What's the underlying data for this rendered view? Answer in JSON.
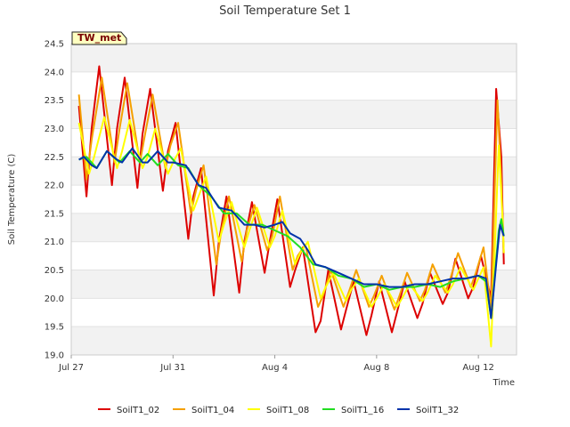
{
  "chart_data": {
    "type": "line",
    "title": "Soil Temperature Set 1",
    "xlabel": "Time",
    "ylabel": "Soil Temperature (C)",
    "badge": "TW_met",
    "ylim": [
      19.0,
      24.5
    ],
    "xlim_days": [
      27.0,
      44.5
    ],
    "y_ticks": [
      "19.0",
      "19.5",
      "20.0",
      "20.5",
      "21.0",
      "21.5",
      "22.0",
      "22.5",
      "23.0",
      "23.5",
      "24.0",
      "24.5"
    ],
    "x_ticks": [
      {
        "label": "Jul 27",
        "day": 27
      },
      {
        "label": "Jul 31",
        "day": 31
      },
      {
        "label": "Aug 4",
        "day": 35
      },
      {
        "label": "Aug 8",
        "day": 39
      },
      {
        "label": "Aug 12",
        "day": 43
      }
    ],
    "grid": "horizontal bands",
    "legend_position": "bottom",
    "series": [
      {
        "name": "SoilT1_02",
        "color": "#dd0000",
        "x": [
          27.3,
          27.6,
          27.8,
          28.1,
          28.6,
          28.8,
          29.1,
          29.6,
          29.8,
          30.1,
          30.6,
          30.8,
          31.1,
          31.6,
          31.8,
          32.1,
          32.6,
          32.8,
          33.1,
          33.6,
          33.8,
          34.1,
          34.6,
          34.8,
          35.1,
          35.6,
          35.8,
          36.1,
          36.6,
          36.8,
          37.1,
          37.6,
          37.8,
          38.1,
          38.6,
          38.8,
          39.1,
          39.6,
          39.8,
          40.1,
          40.6,
          40.8,
          41.1,
          41.6,
          41.8,
          42.1,
          42.6,
          42.8,
          43.1,
          43.5,
          43.7,
          43.9,
          44.0
        ],
        "y": [
          23.4,
          21.8,
          23.0,
          24.1,
          22.0,
          23.0,
          23.9,
          21.95,
          22.9,
          23.7,
          21.9,
          22.6,
          23.1,
          21.05,
          21.8,
          22.3,
          20.05,
          21.0,
          21.8,
          20.1,
          21.0,
          21.7,
          20.45,
          21.0,
          21.75,
          20.2,
          20.5,
          20.9,
          19.4,
          19.6,
          20.5,
          19.45,
          19.8,
          20.3,
          19.35,
          19.7,
          20.3,
          19.4,
          19.75,
          20.3,
          19.65,
          19.9,
          20.45,
          19.9,
          20.1,
          20.7,
          20.0,
          20.2,
          20.75,
          20.0,
          23.7,
          22.5,
          20.6
        ]
      },
      {
        "name": "SoilT1_04",
        "color": "#f5a000",
        "x": [
          27.3,
          27.6,
          27.8,
          28.2,
          28.7,
          28.9,
          29.2,
          29.7,
          29.9,
          30.2,
          30.7,
          30.9,
          31.2,
          31.7,
          31.9,
          32.2,
          32.7,
          32.9,
          33.2,
          33.7,
          33.9,
          34.2,
          34.7,
          34.9,
          35.2,
          35.7,
          35.9,
          36.2,
          36.7,
          36.9,
          37.2,
          37.7,
          37.9,
          38.2,
          38.7,
          38.9,
          39.2,
          39.7,
          39.9,
          40.2,
          40.7,
          40.9,
          41.2,
          41.7,
          41.9,
          42.2,
          42.7,
          42.9,
          43.2,
          43.5,
          43.75,
          43.9,
          44.0
        ],
        "y": [
          23.6,
          22.1,
          22.8,
          23.9,
          22.4,
          23.0,
          23.8,
          22.4,
          22.9,
          23.6,
          22.3,
          22.7,
          23.1,
          21.5,
          21.9,
          22.35,
          20.6,
          21.2,
          21.8,
          20.65,
          21.2,
          21.65,
          20.85,
          21.1,
          21.8,
          20.5,
          20.75,
          20.95,
          19.85,
          20.05,
          20.5,
          19.85,
          20.1,
          20.5,
          19.85,
          20.05,
          20.4,
          19.8,
          20.05,
          20.45,
          19.95,
          20.15,
          20.6,
          20.1,
          20.35,
          20.8,
          20.2,
          20.45,
          20.9,
          19.8,
          23.5,
          22.0,
          20.8
        ]
      },
      {
        "name": "SoilT1_08",
        "color": "#ffff00",
        "x": [
          27.3,
          27.7,
          27.9,
          28.3,
          28.8,
          29.0,
          29.3,
          29.8,
          30.0,
          30.3,
          30.8,
          31.0,
          31.3,
          31.8,
          32.0,
          32.3,
          32.8,
          33.0,
          33.3,
          33.8,
          34.0,
          34.3,
          34.8,
          35.0,
          35.3,
          35.8,
          36.0,
          36.3,
          36.8,
          37.0,
          37.3,
          37.8,
          38.0,
          38.3,
          38.8,
          39.0,
          39.3,
          39.8,
          40.0,
          40.3,
          40.8,
          41.0,
          41.3,
          41.8,
          42.0,
          42.3,
          42.8,
          43.0,
          43.2,
          43.5,
          43.8,
          43.95,
          44.0
        ],
        "y": [
          23.1,
          22.2,
          22.5,
          23.2,
          22.3,
          22.6,
          23.15,
          22.3,
          22.5,
          23.0,
          22.2,
          22.4,
          22.65,
          21.55,
          21.8,
          22.15,
          21.0,
          21.3,
          21.7,
          20.9,
          21.2,
          21.6,
          20.9,
          21.1,
          21.55,
          20.6,
          20.8,
          21.0,
          20.0,
          20.2,
          20.45,
          19.95,
          20.15,
          20.35,
          19.85,
          20.0,
          20.25,
          19.85,
          20.0,
          20.25,
          19.95,
          20.1,
          20.4,
          20.1,
          20.25,
          20.55,
          20.15,
          20.35,
          20.55,
          19.15,
          22.7,
          21.4,
          20.8
        ]
      },
      {
        "name": "SoilT1_16",
        "color": "#22dd22",
        "x": [
          27.3,
          27.6,
          28.0,
          28.4,
          28.9,
          29.3,
          29.7,
          30.0,
          30.4,
          30.8,
          31.2,
          31.6,
          32.0,
          32.5,
          33.0,
          33.5,
          34.0,
          34.5,
          35.0,
          35.5,
          36.0,
          36.5,
          37.0,
          37.5,
          38.0,
          38.5,
          39.0,
          39.5,
          40.0,
          40.5,
          41.0,
          41.5,
          42.0,
          42.5,
          43.0,
          43.3,
          43.5,
          43.8,
          43.9,
          44.0
        ],
        "y": [
          22.45,
          22.5,
          22.3,
          22.6,
          22.4,
          22.6,
          22.4,
          22.55,
          22.35,
          22.55,
          22.35,
          22.3,
          22.0,
          21.8,
          21.5,
          21.5,
          21.3,
          21.3,
          21.2,
          21.1,
          20.9,
          20.6,
          20.55,
          20.4,
          20.35,
          20.2,
          20.25,
          20.15,
          20.2,
          20.2,
          20.25,
          20.2,
          20.3,
          20.35,
          20.4,
          20.3,
          19.65,
          21.2,
          21.4,
          21.1
        ]
      },
      {
        "name": "SoilT1_32",
        "color": "#0033aa",
        "x": [
          27.3,
          27.5,
          27.8,
          28.0,
          28.4,
          28.8,
          29.0,
          29.4,
          29.8,
          30.0,
          30.4,
          30.8,
          31.0,
          31.5,
          32.0,
          32.3,
          32.8,
          33.3,
          33.8,
          34.2,
          34.6,
          35.0,
          35.3,
          35.6,
          36.0,
          36.3,
          36.6,
          37.0,
          37.5,
          38.0,
          38.5,
          39.0,
          39.5,
          40.0,
          40.5,
          41.0,
          41.5,
          42.0,
          42.5,
          43.0,
          43.3,
          43.5,
          43.7,
          43.85,
          44.0
        ],
        "y": [
          22.45,
          22.5,
          22.35,
          22.3,
          22.6,
          22.45,
          22.4,
          22.65,
          22.4,
          22.4,
          22.6,
          22.4,
          22.4,
          22.35,
          22.0,
          21.95,
          21.6,
          21.55,
          21.3,
          21.3,
          21.25,
          21.3,
          21.35,
          21.15,
          21.05,
          20.85,
          20.6,
          20.55,
          20.45,
          20.35,
          20.25,
          20.25,
          20.2,
          20.2,
          20.25,
          20.25,
          20.3,
          20.35,
          20.35,
          20.4,
          20.35,
          19.65,
          20.6,
          21.3,
          21.1
        ]
      }
    ]
  }
}
